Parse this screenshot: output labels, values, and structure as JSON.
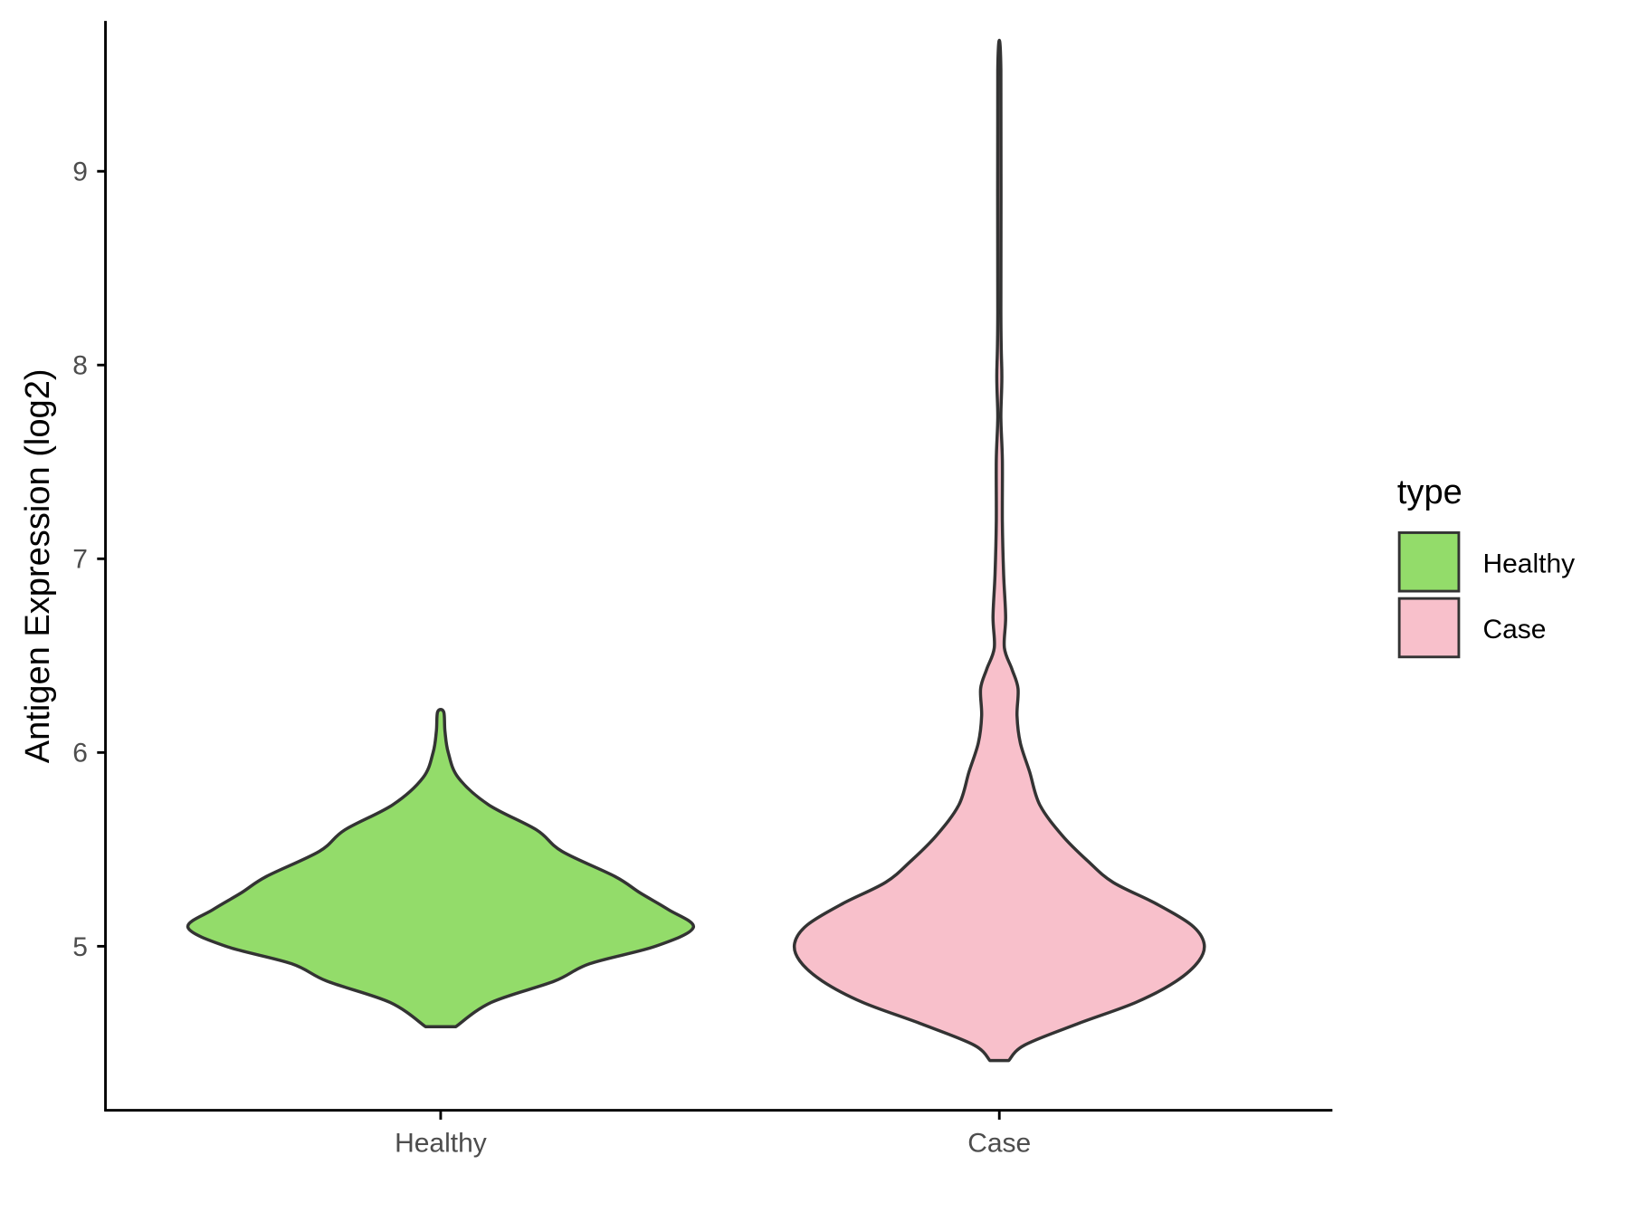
{
  "chart_data": {
    "type": "violin",
    "title": "",
    "xlabel": "",
    "ylabel": "Antigen Expression (log2)",
    "ylim": [
      4.15,
      9.78
    ],
    "yticks": [
      5,
      6,
      7,
      8,
      9
    ],
    "categories": [
      "Healthy",
      "Case"
    ],
    "grid": false,
    "legend": {
      "title": "type",
      "position": "right",
      "entries": [
        "Healthy",
        "Case"
      ]
    },
    "colors": {
      "Healthy": "#93dc6a",
      "Case": "#f8c0cb",
      "outline": "#333333"
    },
    "series": [
      {
        "name": "Healthy",
        "density_profile": [
          [
            4.585,
            0.06
          ],
          [
            4.71,
            0.2
          ],
          [
            4.82,
            0.45
          ],
          [
            4.91,
            0.59
          ],
          [
            5.0,
            0.85
          ],
          [
            5.097,
            1.0
          ],
          [
            5.19,
            0.9
          ],
          [
            5.275,
            0.79
          ],
          [
            5.36,
            0.69
          ],
          [
            5.49,
            0.48
          ],
          [
            5.6,
            0.38
          ],
          [
            5.73,
            0.19
          ],
          [
            5.87,
            0.07
          ],
          [
            6.0,
            0.03
          ],
          [
            6.11,
            0.017
          ],
          [
            6.21,
            0.012
          ]
        ]
      },
      {
        "name": "Case",
        "density_profile": [
          [
            4.41,
            0.037
          ],
          [
            4.49,
            0.1
          ],
          [
            4.6,
            0.31
          ],
          [
            4.71,
            0.54
          ],
          [
            4.82,
            0.7
          ],
          [
            4.925,
            0.79
          ],
          [
            5.016,
            0.81
          ],
          [
            5.11,
            0.76
          ],
          [
            5.22,
            0.62
          ],
          [
            5.33,
            0.45
          ],
          [
            5.44,
            0.35
          ],
          [
            5.57,
            0.25
          ],
          [
            5.73,
            0.16
          ],
          [
            5.9,
            0.12
          ],
          [
            6.05,
            0.083
          ],
          [
            6.19,
            0.07
          ],
          [
            6.33,
            0.074
          ],
          [
            6.43,
            0.05
          ],
          [
            6.54,
            0.02
          ],
          [
            6.7,
            0.025
          ],
          [
            6.92,
            0.017
          ],
          [
            7.19,
            0.012
          ],
          [
            7.51,
            0.012
          ],
          [
            7.73,
            0.006
          ],
          [
            7.94,
            0.01
          ],
          [
            8.27,
            0.006
          ],
          [
            9.52,
            0.006
          ]
        ]
      }
    ]
  }
}
